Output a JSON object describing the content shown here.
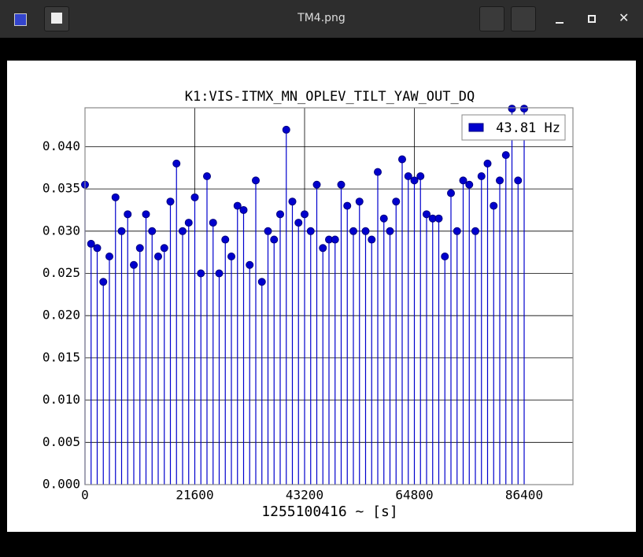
{
  "window": {
    "title": "TM4.png"
  },
  "chart_data": {
    "type": "stem",
    "title": "K1:VIS-ITMX_MN_OPLEV_TILT_YAW_OUT_DQ",
    "xlabel": "1255100416 ~ [s]",
    "x": [
      0,
      1200,
      2400,
      3600,
      4800,
      6000,
      7200,
      8400,
      9600,
      10800,
      12000,
      13200,
      14400,
      15600,
      16800,
      18000,
      19200,
      20400,
      21600,
      22800,
      24000,
      25200,
      26400,
      27600,
      28800,
      30000,
      31200,
      32400,
      33600,
      34800,
      36000,
      37200,
      38400,
      39600,
      40800,
      42000,
      43200,
      44400,
      45600,
      46800,
      48000,
      49200,
      50400,
      51600,
      52800,
      54000,
      55200,
      56400,
      57600,
      58800,
      60000,
      61200,
      62400,
      63600,
      64800,
      66000,
      67200,
      68400,
      69600,
      70800,
      72000,
      73200,
      74400,
      75600,
      76800,
      78000,
      79200,
      80400,
      81600,
      82800,
      84000,
      85200,
      86400
    ],
    "series": [
      {
        "name": "43.81 Hz",
        "color": "#0000cd",
        "values": [
          0.0355,
          0.0285,
          0.028,
          0.024,
          0.027,
          0.034,
          0.03,
          0.032,
          0.026,
          0.028,
          0.032,
          0.03,
          0.027,
          0.028,
          0.0335,
          0.038,
          0.03,
          0.031,
          0.034,
          0.025,
          0.0365,
          0.031,
          0.025,
          0.029,
          0.027,
          0.033,
          0.0325,
          0.026,
          0.036,
          0.024,
          0.03,
          0.029,
          0.032,
          0.042,
          0.0335,
          0.031,
          0.032,
          0.03,
          0.0355,
          0.028,
          0.029,
          0.029,
          0.0355,
          0.033,
          0.03,
          0.0335,
          0.03,
          0.029,
          0.037,
          0.0315,
          0.03,
          0.0335,
          0.0385,
          0.0365,
          0.036,
          0.0365,
          0.032,
          0.0315,
          0.0315,
          0.027,
          0.0345,
          0.03,
          0.036,
          0.0355,
          0.03,
          0.0365,
          0.038,
          0.033,
          0.036,
          0.039,
          0.0445,
          0.036,
          0.0445
        ]
      }
    ],
    "xlim": [
      0,
      96000
    ],
    "ylim": [
      0,
      0.0446
    ],
    "xticks": [
      0,
      21600,
      43200,
      64800,
      86400
    ],
    "yticks": [
      {
        "value": 0,
        "label": "0.000"
      },
      {
        "value": 0.005,
        "label": "0.005"
      },
      {
        "value": 0.01,
        "label": "0.010"
      },
      {
        "value": 0.015,
        "label": "0.015"
      },
      {
        "value": 0.02,
        "label": "0.020"
      },
      {
        "value": 0.025,
        "label": "0.025"
      },
      {
        "value": 0.03,
        "label": "0.030"
      },
      {
        "value": 0.035,
        "label": "0.035"
      },
      {
        "value": 0.04,
        "label": "0.040"
      }
    ],
    "grid": true,
    "legend": "upper right"
  }
}
